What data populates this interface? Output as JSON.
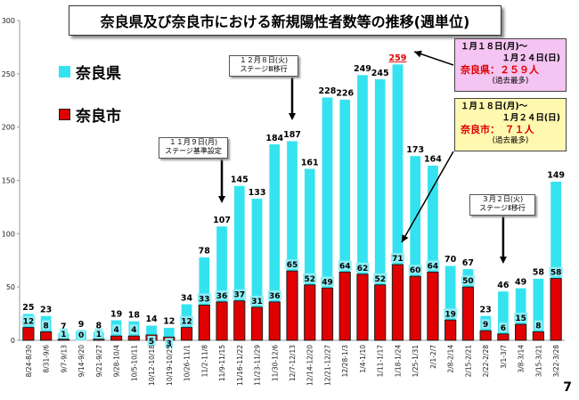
{
  "header": {
    "title": "奈良県及び奈良市における新規陽性者数等の推移(週単位)"
  },
  "legend": {
    "prefecture": "奈良県",
    "city": "奈良市"
  },
  "colors": {
    "prefecture": "#35e3f0",
    "city": "#e00000",
    "pref_edge": "#ffffff",
    "city_edge": "#222222"
  },
  "info_box_pref": {
    "line1": "１月１８日(月)～",
    "line2": "１月２４日(日)",
    "line3": "奈良県：２５９人",
    "line4": "(過去最多)"
  },
  "info_box_city": {
    "line1": "１月１８日(月)～",
    "line2": "１月２４日(日)",
    "line3": "奈良市：　７１人",
    "line4": "(過去最多)"
  },
  "callouts": [
    {
      "date": "１１月９日(月)",
      "label": "ステージ基準設定"
    },
    {
      "date": "１２月８日(火)",
      "label": "ステージⅢ移行"
    },
    {
      "date": "３月２日(火)",
      "label": "ステージⅡ移行"
    }
  ],
  "page_number": "7",
  "chart_data": {
    "type": "bar",
    "yticks": [
      0,
      50,
      100,
      150,
      200,
      250,
      300
    ],
    "ylim": [
      0,
      300
    ],
    "categories": [
      "8/24-8/30",
      "8/31-9/6",
      "9/7-9/13",
      "9/14-9/20",
      "9/21-9/27",
      "9/28-10/4",
      "10/5-10/11",
      "10/12-10/18",
      "10/19-10/25",
      "10/26-11/1",
      "11/2-11/8",
      "11/9-11/15",
      "11/16-11/22",
      "11/23-11/29",
      "11/30-12/6",
      "12/7-12/13",
      "12/14-12/20",
      "12/21-12/27",
      "12/28-1/3",
      "1/4-1/10",
      "1/11-1/17",
      "1/18-1/24",
      "1/25-1/31",
      "2/1-2/7",
      "2/8-2/14",
      "2/15-2/21",
      "2/22-2/28",
      "3/1-3/7",
      "3/8-3/14",
      "3/15-3/21",
      "3/22-3/28"
    ],
    "series": [
      {
        "name": "奈良県",
        "values": [
          25,
          23,
          7,
          9,
          8,
          19,
          18,
          14,
          12,
          34,
          78,
          107,
          145,
          133,
          184,
          187,
          161,
          228,
          226,
          249,
          245,
          259,
          173,
          164,
          70,
          67,
          23,
          46,
          49,
          58,
          149
        ]
      },
      {
        "name": "奈良市",
        "values": [
          12,
          8,
          1,
          0,
          1,
          4,
          4,
          5,
          3,
          12,
          33,
          36,
          37,
          31,
          36,
          65,
          52,
          49,
          64,
          62,
          52,
          71,
          60,
          64,
          19,
          50,
          9,
          6,
          15,
          8,
          58
        ]
      }
    ]
  }
}
